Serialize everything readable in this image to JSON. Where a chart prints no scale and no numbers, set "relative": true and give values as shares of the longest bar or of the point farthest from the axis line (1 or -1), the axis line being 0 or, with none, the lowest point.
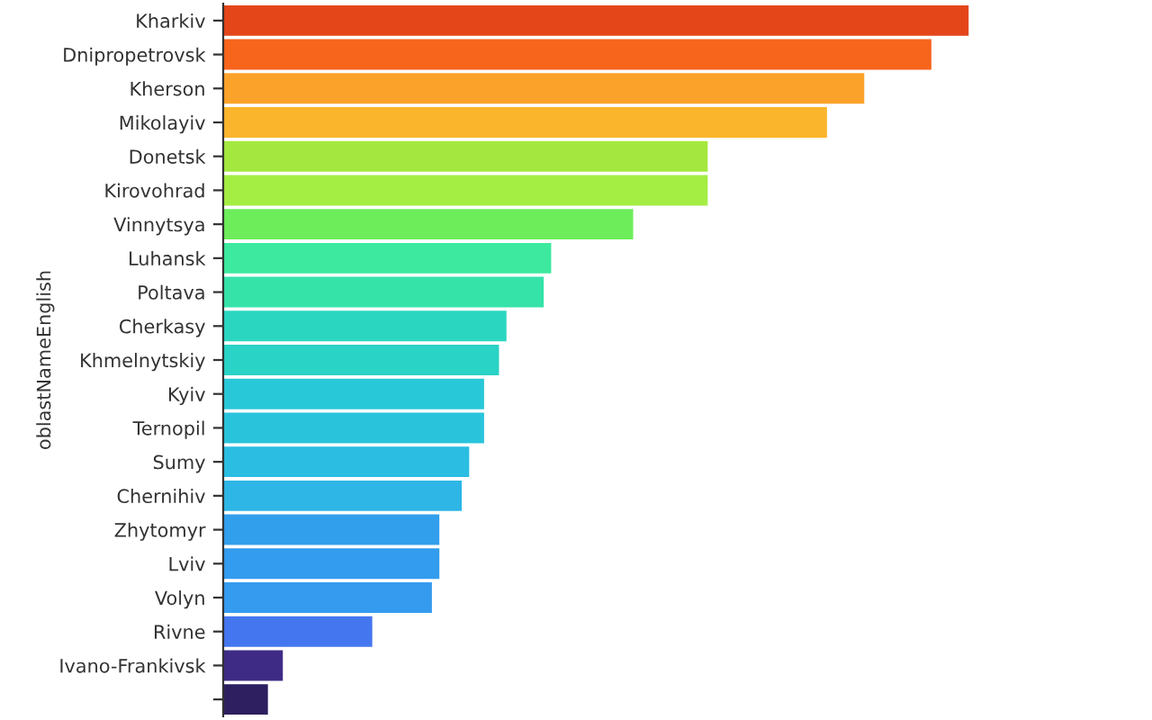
{
  "chart_data": {
    "type": "bar",
    "orientation": "horizontal",
    "relative": true,
    "ylabel": "oblastNameEnglish",
    "categories": [
      "Kharkiv",
      "Dnipropetrovsk",
      "Kherson",
      "Mikolayiv",
      "Donetsk",
      "Kirovohrad",
      "Vinnytsya",
      "Luhansk",
      "Poltava",
      "Cherkasy",
      "Khmelnytskiy",
      "Kyiv",
      "Ternopil",
      "Sumy",
      "Chernihiv",
      "Zhytomyr",
      "Lviv",
      "Volyn",
      "Rivne",
      "Ivano-Frankivsk",
      null
    ],
    "values": [
      1,
      0.95,
      0.86,
      0.81,
      0.65,
      0.65,
      0.55,
      0.44,
      0.43,
      0.38,
      0.37,
      0.35,
      0.35,
      0.33,
      0.32,
      0.29,
      0.29,
      0.28,
      0.2,
      0.08,
      0.06
    ],
    "colors": [
      "#e4461a",
      "#f7641c",
      "#fba22a",
      "#fbb52c",
      "#a4e83f",
      "#a4ee44",
      "#6ded5a",
      "#3ce99f",
      "#35e3a8",
      "#2bd6c0",
      "#29d3c6",
      "#29c8d8",
      "#29c4dc",
      "#2bbde2",
      "#2db6e6",
      "#329fec",
      "#339cee",
      "#359bef",
      "#4477ef",
      "#3e2b85",
      "#2d1f60"
    ],
    "grid": false,
    "legend": false
  }
}
